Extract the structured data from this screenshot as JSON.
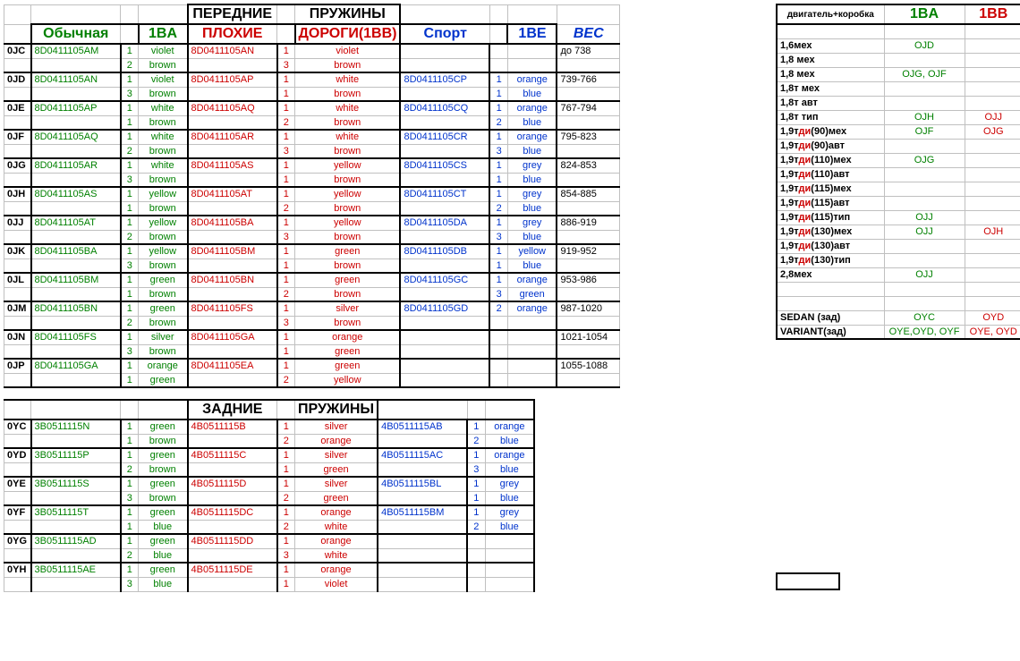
{
  "titles": {
    "front": "ПЕРЕДНИЕ",
    "springs": "ПРУЖИНЫ",
    "rear": "ЗАДНИЕ",
    "normal": "Обычная",
    "c1ba": "1BA",
    "bad": "ПЛОХИЕ",
    "roads": "ДОРОГИ(1ВВ)",
    "sport": "Спорт",
    "c1be": "1BE",
    "weight": "ВЕС",
    "engine": "двигатель+коробка",
    "r1ba": "1BA",
    "r1bb": "1BB"
  },
  "front": [
    {
      "code": "0JC",
      "pn1": "8D0411105AM",
      "n1a": "1",
      "c1a": "violet",
      "n1b": "2",
      "c1b": "brown",
      "pn2": "8D0411105AN",
      "n2a": "1",
      "c2a": "violet",
      "n2b": "3",
      "c2b": "brown",
      "pn3": "",
      "n3a": "",
      "c3a": "",
      "n3b": "",
      "c3b": "",
      "wt": "до 738"
    },
    {
      "code": "0JD",
      "pn1": "8D0411105AN",
      "n1a": "1",
      "c1a": "violet",
      "n1b": "3",
      "c1b": "brown",
      "pn2": "8D0411105AP",
      "n2a": "1",
      "c2a": "white",
      "n2b": "1",
      "c2b": "brown",
      "pn3": "8D0411105CP",
      "n3a": "1",
      "c3a": "orange",
      "n3b": "1",
      "c3b": "blue",
      "wt": "739-766"
    },
    {
      "code": "0JE",
      "pn1": "8D0411105AP",
      "n1a": "1",
      "c1a": "white",
      "n1b": "1",
      "c1b": "brown",
      "pn2": "8D0411105AQ",
      "n2a": "1",
      "c2a": "white",
      "n2b": "2",
      "c2b": "brown",
      "pn3": "8D0411105CQ",
      "n3a": "1",
      "c3a": "orange",
      "n3b": "2",
      "c3b": "blue",
      "wt": "767-794"
    },
    {
      "code": "0JF",
      "pn1": "8D0411105AQ",
      "n1a": "1",
      "c1a": "white",
      "n1b": "2",
      "c1b": "brown",
      "pn2": "8D0411105AR",
      "n2a": "1",
      "c2a": "white",
      "n2b": "3",
      "c2b": "brown",
      "pn3": "8D0411105CR",
      "n3a": "1",
      "c3a": "orange",
      "n3b": "3",
      "c3b": "blue",
      "wt": "795-823"
    },
    {
      "code": "0JG",
      "pn1": "8D0411105AR",
      "n1a": "1",
      "c1a": "white",
      "n1b": "3",
      "c1b": "brown",
      "pn2": "8D0411105AS",
      "n2a": "1",
      "c2a": "yellow",
      "n2b": "1",
      "c2b": "brown",
      "pn3": "8D0411105CS",
      "n3a": "1",
      "c3a": "grey",
      "n3b": "1",
      "c3b": "blue",
      "wt": "824-853"
    },
    {
      "code": "0JH",
      "pn1": "8D0411105AS",
      "n1a": "1",
      "c1a": "yellow",
      "n1b": "1",
      "c1b": "brown",
      "pn2": "8D0411105AT",
      "n2a": "1",
      "c2a": "yellow",
      "n2b": "2",
      "c2b": "brown",
      "pn3": "8D0411105CT",
      "n3a": "1",
      "c3a": "grey",
      "n3b": "2",
      "c3b": "blue",
      "wt": "854-885"
    },
    {
      "code": "0JJ",
      "pn1": "8D0411105AT",
      "n1a": "1",
      "c1a": "yellow",
      "n1b": "2",
      "c1b": "brown",
      "pn2": "8D0411105BA",
      "n2a": "1",
      "c2a": "yellow",
      "n2b": "3",
      "c2b": "brown",
      "pn3": "8D0411105DA",
      "n3a": "1",
      "c3a": "grey",
      "n3b": "3",
      "c3b": "blue",
      "wt": "886-919"
    },
    {
      "code": "0JK",
      "pn1": "8D0411105BA",
      "n1a": "1",
      "c1a": "yellow",
      "n1b": "3",
      "c1b": "brown",
      "pn2": "8D0411105BM",
      "n2a": "1",
      "c2a": "green",
      "n2b": "1",
      "c2b": "brown",
      "pn3": "8D0411105DB",
      "n3a": "1",
      "c3a": "yellow",
      "n3b": "1",
      "c3b": "blue",
      "wt": "919-952"
    },
    {
      "code": "0JL",
      "pn1": "8D0411105BM",
      "n1a": "1",
      "c1a": "green",
      "n1b": "1",
      "c1b": "brown",
      "pn2": "8D0411105BN",
      "n2a": "1",
      "c2a": "green",
      "n2b": "2",
      "c2b": "brown",
      "pn3": "8D0411105GC",
      "n3a": "1",
      "c3a": "orange",
      "n3b": "3",
      "c3b": "green",
      "wt": "953-986"
    },
    {
      "code": "0JM",
      "pn1": "8D0411105BN",
      "n1a": "1",
      "c1a": "green",
      "n1b": "2",
      "c1b": "brown",
      "pn2": "8D0411105FS",
      "n2a": "1",
      "c2a": "silver",
      "n2b": "3",
      "c2b": "brown",
      "pn3": "8D0411105GD",
      "n3a": "2",
      "c3a": "orange",
      "n3b": "",
      "c3b": "",
      "wt": "987-1020"
    },
    {
      "code": "0JN",
      "pn1": "8D0411105FS",
      "n1a": "1",
      "c1a": "silver",
      "n1b": "3",
      "c1b": "brown",
      "pn2": "8D0411105GA",
      "n2a": "1",
      "c2a": "orange",
      "n2b": "1",
      "c2b": "green",
      "pn3": "",
      "n3a": "",
      "c3a": "",
      "n3b": "",
      "c3b": "",
      "wt": "1021-1054"
    },
    {
      "code": "0JP",
      "pn1": "8D0411105GA",
      "n1a": "1",
      "c1a": "orange",
      "n1b": "1",
      "c1b": "green",
      "pn2": "8D0411105EA",
      "n2a": "1",
      "c2a": "green",
      "n2b": "2",
      "c2b": "yellow",
      "pn3": "",
      "n3a": "",
      "c3a": "",
      "n3b": "",
      "c3b": "",
      "wt": "1055-1088"
    }
  ],
  "rear": [
    {
      "code": "0YC",
      "pn1": "3B0511115N",
      "n1a": "1",
      "c1a": "green",
      "n1b": "1",
      "c1b": "brown",
      "pn2": "4B0511115B",
      "n2a": "1",
      "c2a": "silver",
      "n2b": "2",
      "c2b": "orange",
      "pn3": "4B0511115AB",
      "n3a": "1",
      "c3a": "orange",
      "n3b": "2",
      "c3b": "blue"
    },
    {
      "code": "0YD",
      "pn1": "3B0511115P",
      "n1a": "1",
      "c1a": "green",
      "n1b": "2",
      "c1b": "brown",
      "pn2": "4B0511115C",
      "n2a": "1",
      "c2a": "silver",
      "n2b": "1",
      "c2b": "green",
      "pn3": "4B0511115AC",
      "n3a": "1",
      "c3a": "orange",
      "n3b": "3",
      "c3b": "blue"
    },
    {
      "code": "0YE",
      "pn1": "3B0511115S",
      "n1a": "1",
      "c1a": "green",
      "n1b": "3",
      "c1b": "brown",
      "pn2": "4B0511115D",
      "n2a": "1",
      "c2a": "silver",
      "n2b": "2",
      "c2b": "green",
      "pn3": "4B0511115BL",
      "n3a": "1",
      "c3a": "grey",
      "n3b": "1",
      "c3b": "blue"
    },
    {
      "code": "0YF",
      "pn1": "3B0511115T",
      "n1a": "1",
      "c1a": "green",
      "n1b": "1",
      "c1b": "blue",
      "pn2": "4B0511115DC",
      "n2a": "1",
      "c2a": "orange",
      "n2b": "2",
      "c2b": "white",
      "pn3": "4B0511115BM",
      "n3a": "1",
      "c3a": "grey",
      "n3b": "2",
      "c3b": "blue"
    },
    {
      "code": "0YG",
      "pn1": "3B0511115AD",
      "n1a": "1",
      "c1a": "green",
      "n1b": "2",
      "c1b": "blue",
      "pn2": "4B0511115DD",
      "n2a": "1",
      "c2a": "orange",
      "n2b": "3",
      "c2b": "white",
      "pn3": "",
      "n3a": "",
      "c3a": "",
      "n3b": "",
      "c3b": ""
    },
    {
      "code": "0YH",
      "pn1": "3B0511115AE",
      "n1a": "1",
      "c1a": "green",
      "n1b": "3",
      "c1b": "blue",
      "pn2": "4B0511115DE",
      "n2a": "1",
      "c2a": "orange",
      "n2b": "1",
      "c2b": "violet",
      "pn3": "",
      "n3a": "",
      "c3a": "",
      "n3b": "",
      "c3b": ""
    }
  ],
  "engines": [
    {
      "name": "1,6мех",
      "ba": "OJD",
      "bb": ""
    },
    {
      "name": "1,8 мех",
      "ba": "",
      "bb": ""
    },
    {
      "name": "1,8 мех",
      "ba": "OJG, OJF",
      "bb": ""
    },
    {
      "name": "1,8т мех",
      "ba": "",
      "bb": ""
    },
    {
      "name": "1,8т авт",
      "ba": "",
      "bb": ""
    },
    {
      "name": "1,8т тип",
      "ba": "OJH",
      "bb": "OJJ"
    },
    {
      "name": "1,9тди(90)мех",
      "ba": "OJF",
      "bb": "OJG"
    },
    {
      "name": "1,9тди(90)авт",
      "ba": "",
      "bb": ""
    },
    {
      "name": "1,9тди(110)мех",
      "ba": "OJG",
      "bb": ""
    },
    {
      "name": "1,9тди(110)авт",
      "ba": "",
      "bb": ""
    },
    {
      "name": "1,9тди(115)мех",
      "ba": "",
      "bb": ""
    },
    {
      "name": "1,9тди(115)авт",
      "ba": "",
      "bb": ""
    },
    {
      "name": "1,9тди(115)тип",
      "ba": "OJJ",
      "bb": ""
    },
    {
      "name": "1,9тди(130)мех",
      "ba": "OJJ",
      "bb": "OJH"
    },
    {
      "name": "1,9тди(130)авт",
      "ba": "",
      "bb": ""
    },
    {
      "name": "1,9тди(130)тип",
      "ba": "",
      "bb": ""
    },
    {
      "name": "2,8мех",
      "ba": "OJJ",
      "bb": ""
    }
  ],
  "bottom": [
    {
      "name": "SEDAN (зад)",
      "ba": "OYC",
      "bb": "OYD"
    },
    {
      "name": "VARIANT(зад)",
      "ba": "OYE,OYD, OYF",
      "bb": "OYE, OYD"
    }
  ]
}
